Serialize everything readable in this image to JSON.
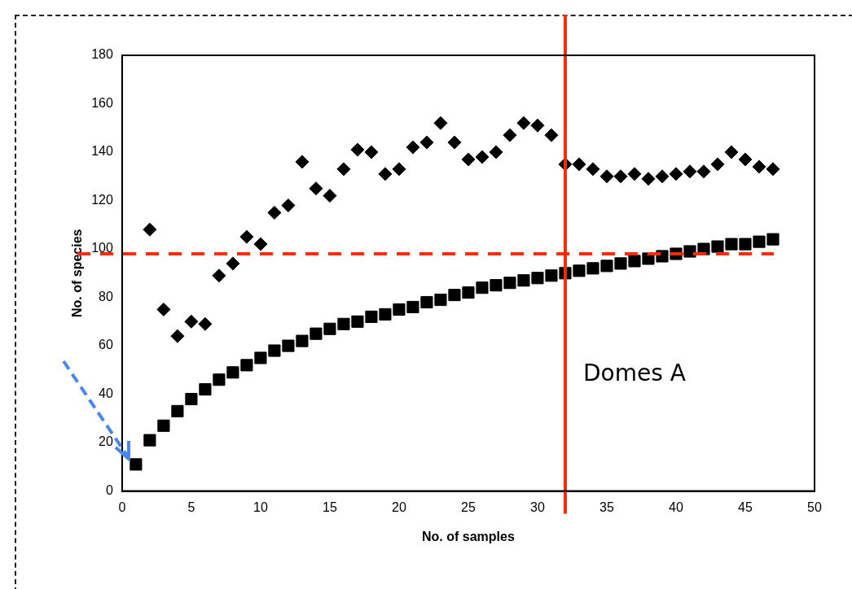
{
  "chart_data": {
    "type": "scatter",
    "xlabel": "No. of samples",
    "ylabel": "No. of species",
    "x": [
      1,
      2,
      3,
      4,
      5,
      6,
      7,
      8,
      9,
      10,
      11,
      12,
      13,
      14,
      15,
      16,
      17,
      18,
      19,
      20,
      21,
      22,
      23,
      24,
      25,
      26,
      27,
      28,
      29,
      30,
      31,
      32,
      33,
      34,
      35,
      36,
      37,
      38,
      39,
      40,
      41,
      42,
      43,
      44,
      45,
      46,
      47
    ],
    "series": [
      {
        "color": "#000000",
        "marker": "diamond",
        "values": [
          null,
          108,
          75,
          64,
          70,
          69,
          89,
          94,
          105,
          102,
          115,
          118,
          136,
          125,
          122,
          133,
          141,
          140,
          131,
          133,
          142,
          144,
          152,
          144,
          137,
          138,
          140,
          147,
          152,
          151,
          147,
          135,
          135,
          133,
          130,
          130,
          131,
          129,
          130,
          131,
          132,
          132,
          135,
          140,
          137,
          134,
          133
        ]
      },
      {
        "color": "#000000",
        "marker": "square",
        "values": [
          11,
          21,
          27,
          33,
          38,
          42,
          46,
          49,
          52,
          55,
          58,
          60,
          62,
          65,
          67,
          69,
          70,
          72,
          73,
          75,
          76,
          78,
          79,
          81,
          82,
          84,
          85,
          86,
          87,
          88,
          89,
          90,
          91,
          92,
          93,
          94,
          95,
          96,
          97,
          98,
          99,
          100,
          101,
          102,
          102,
          103,
          104
        ]
      }
    ],
    "xlim": [
      0,
      50
    ],
    "xticks": [
      0,
      5,
      10,
      15,
      20,
      25,
      30,
      35,
      40,
      45,
      50
    ],
    "ylim": [
      0,
      180
    ],
    "yticks": [
      0,
      20,
      40,
      60,
      80,
      100,
      120,
      140,
      160,
      180
    ],
    "grid": false,
    "legend": false,
    "ref_lines": [
      {
        "axis": "y",
        "value": 98,
        "color": "#ff2a00",
        "line_style": "dashed"
      },
      {
        "axis": "x",
        "value": 32,
        "label": "Domes A",
        "color": "#ff2a00",
        "line_style": "solid"
      }
    ]
  }
}
